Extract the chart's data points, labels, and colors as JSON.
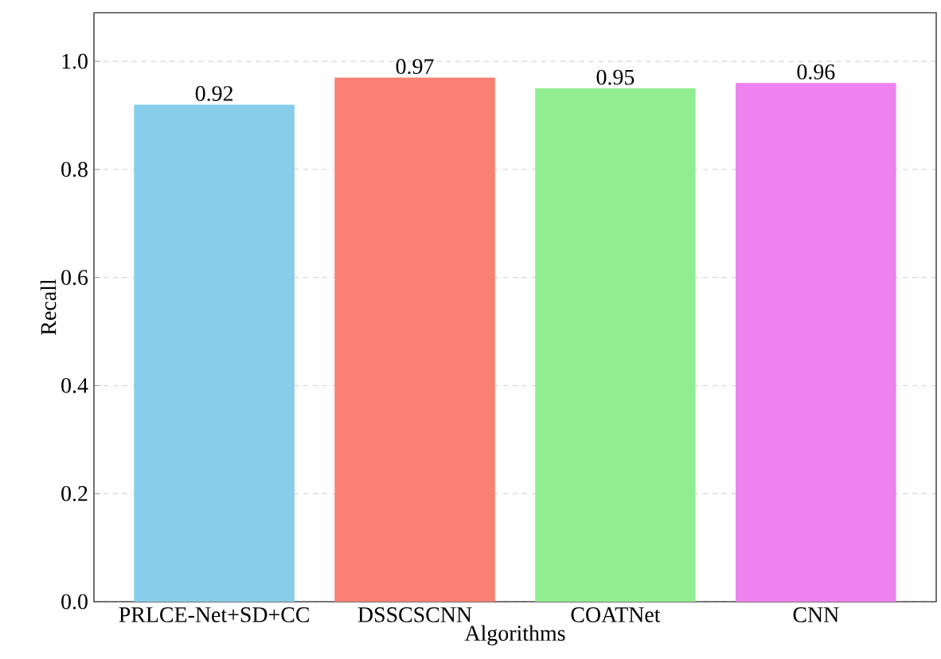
{
  "chart_data": {
    "type": "bar",
    "xlabel": "Algorithms",
    "ylabel": "Recall",
    "categories": [
      "PRLCE-Net+SD+CC",
      "DSSCSCNN",
      "COATNet",
      "CNN"
    ],
    "values": [
      0.92,
      0.97,
      0.95,
      0.96
    ],
    "colors": [
      "#87ceeb",
      "#fa8072",
      "#90ee90",
      "#ee82ee"
    ],
    "ylim": [
      0,
      1.09
    ],
    "yticks": [
      {
        "value": 0,
        "label": "0.0"
      },
      0.2,
      0.4,
      0.6,
      0.8,
      {
        "value": 1,
        "label": "1.0"
      }
    ],
    "grid": "y",
    "data_labels": true
  }
}
